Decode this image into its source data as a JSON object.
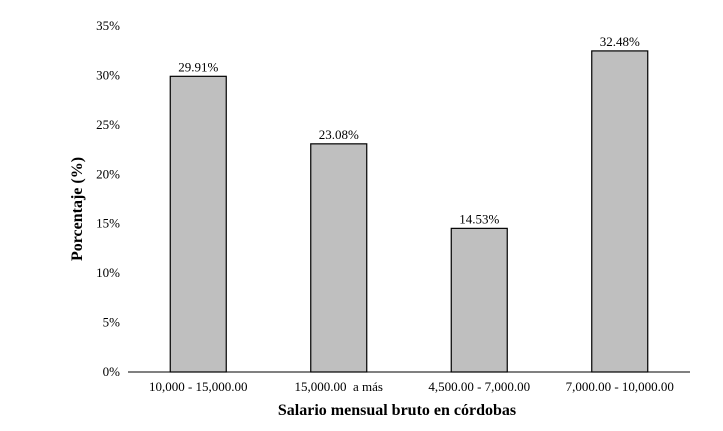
{
  "chart_data": {
    "type": "bar",
    "categories": [
      "10,000 - 15,000.00",
      "15,000.00  a más",
      "4,500.00 - 7,000.00",
      "7,000.00 - 10,000.00"
    ],
    "values": [
      29.91,
      23.08,
      14.53,
      32.48
    ],
    "data_labels": [
      "29.91%",
      "23.08%",
      "14.53%",
      "32.48%"
    ],
    "title": "",
    "xlabel": "Salario mensual bruto en córdobas",
    "ylabel": "Porcentaje (%)",
    "ylim": [
      0,
      35
    ],
    "yticks": [
      0,
      5,
      10,
      15,
      20,
      25,
      30,
      35
    ],
    "ytick_labels": [
      "0%",
      "5%",
      "10%",
      "15%",
      "20%",
      "25%",
      "30%",
      "35%"
    ],
    "grid": false,
    "legend": "none",
    "colors": {
      "bar_fill": "#bfbfbf",
      "bar_stroke": "#000000"
    }
  }
}
